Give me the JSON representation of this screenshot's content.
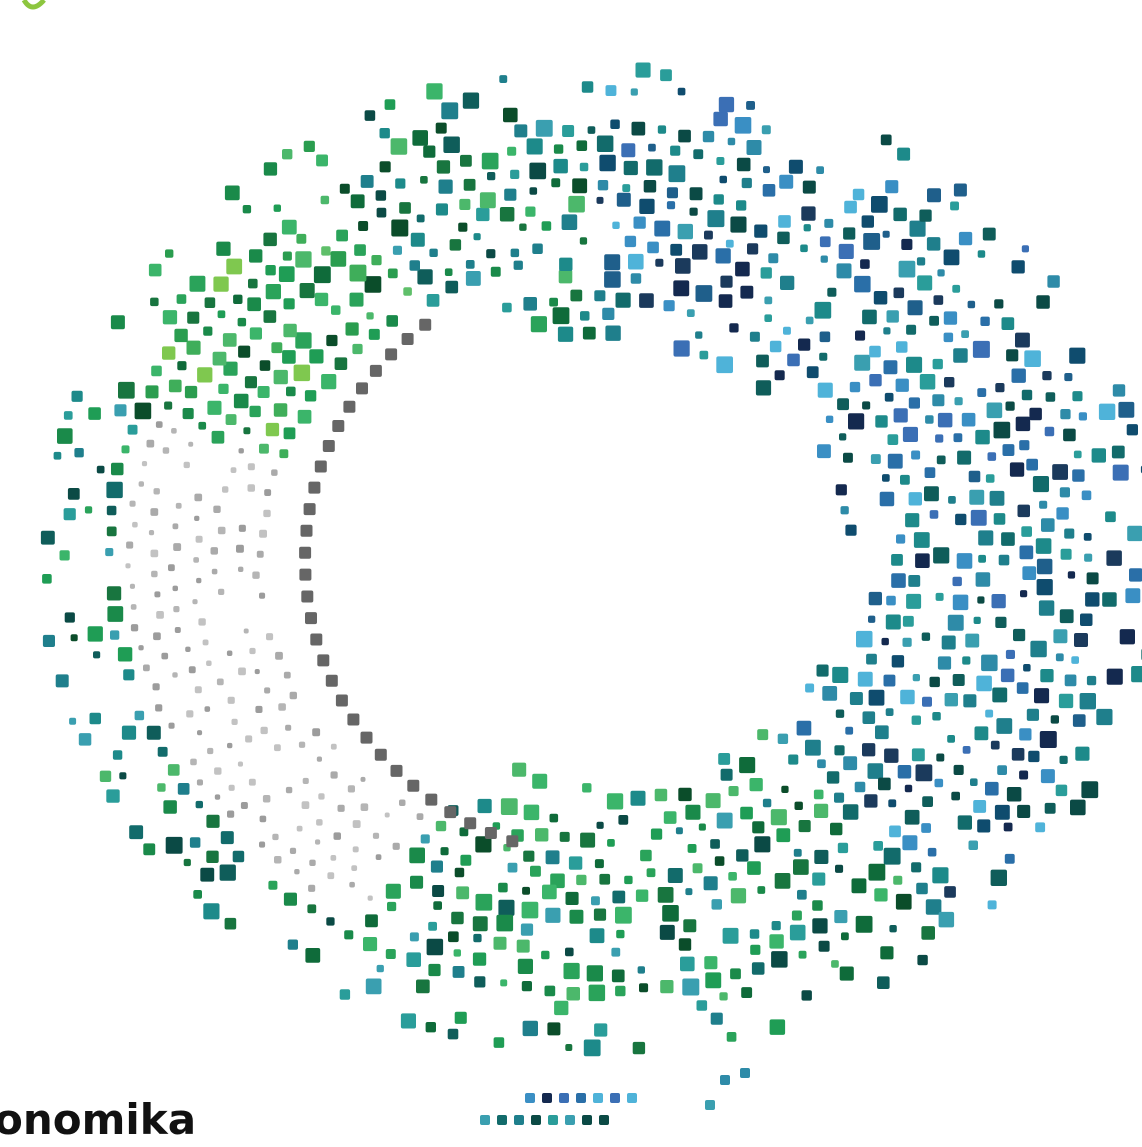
{
  "brand": {
    "text": "onomika"
  }
}
